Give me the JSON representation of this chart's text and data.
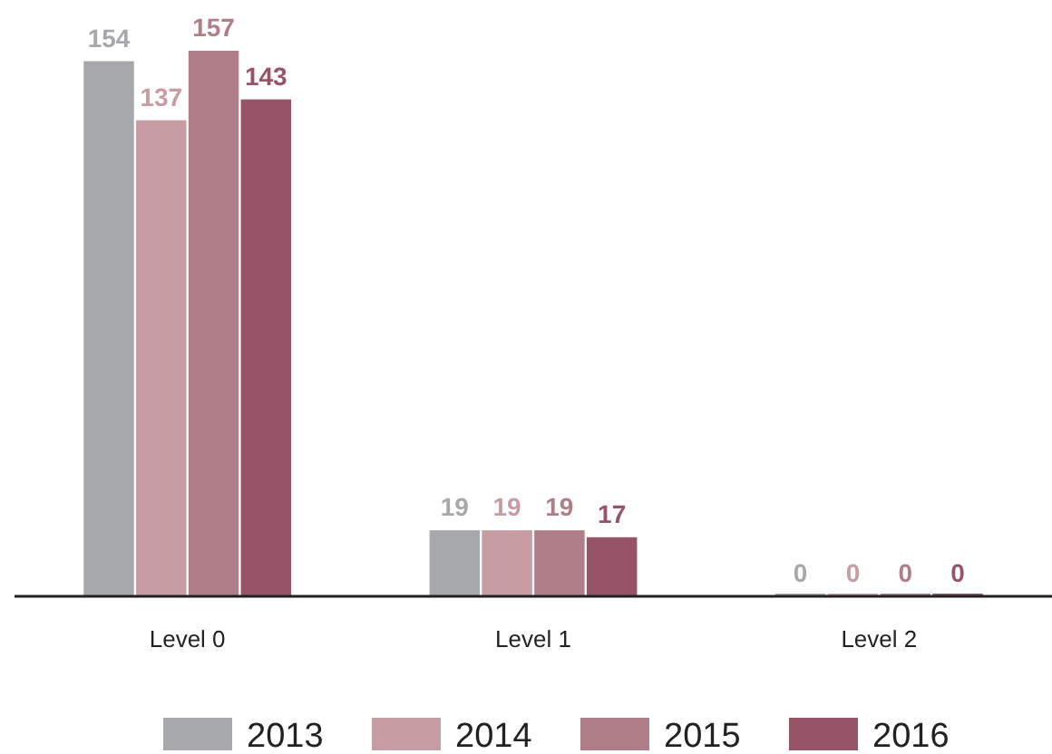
{
  "chart_data": {
    "type": "bar",
    "categories": [
      "Level 0",
      "Level 1",
      "Level 2"
    ],
    "series": [
      {
        "name": "2013",
        "color": "#a7a8ab",
        "values": [
          154,
          19,
          0
        ]
      },
      {
        "name": "2014",
        "color": "#c89ca3",
        "values": [
          137,
          19,
          0
        ]
      },
      {
        "name": "2015",
        "color": "#b07e88",
        "values": [
          157,
          19,
          0
        ]
      },
      {
        "name": "2016",
        "color": "#975467",
        "values": [
          143,
          17,
          0
        ]
      }
    ],
    "data_labels": true,
    "legend": "bottom",
    "grid": false
  }
}
